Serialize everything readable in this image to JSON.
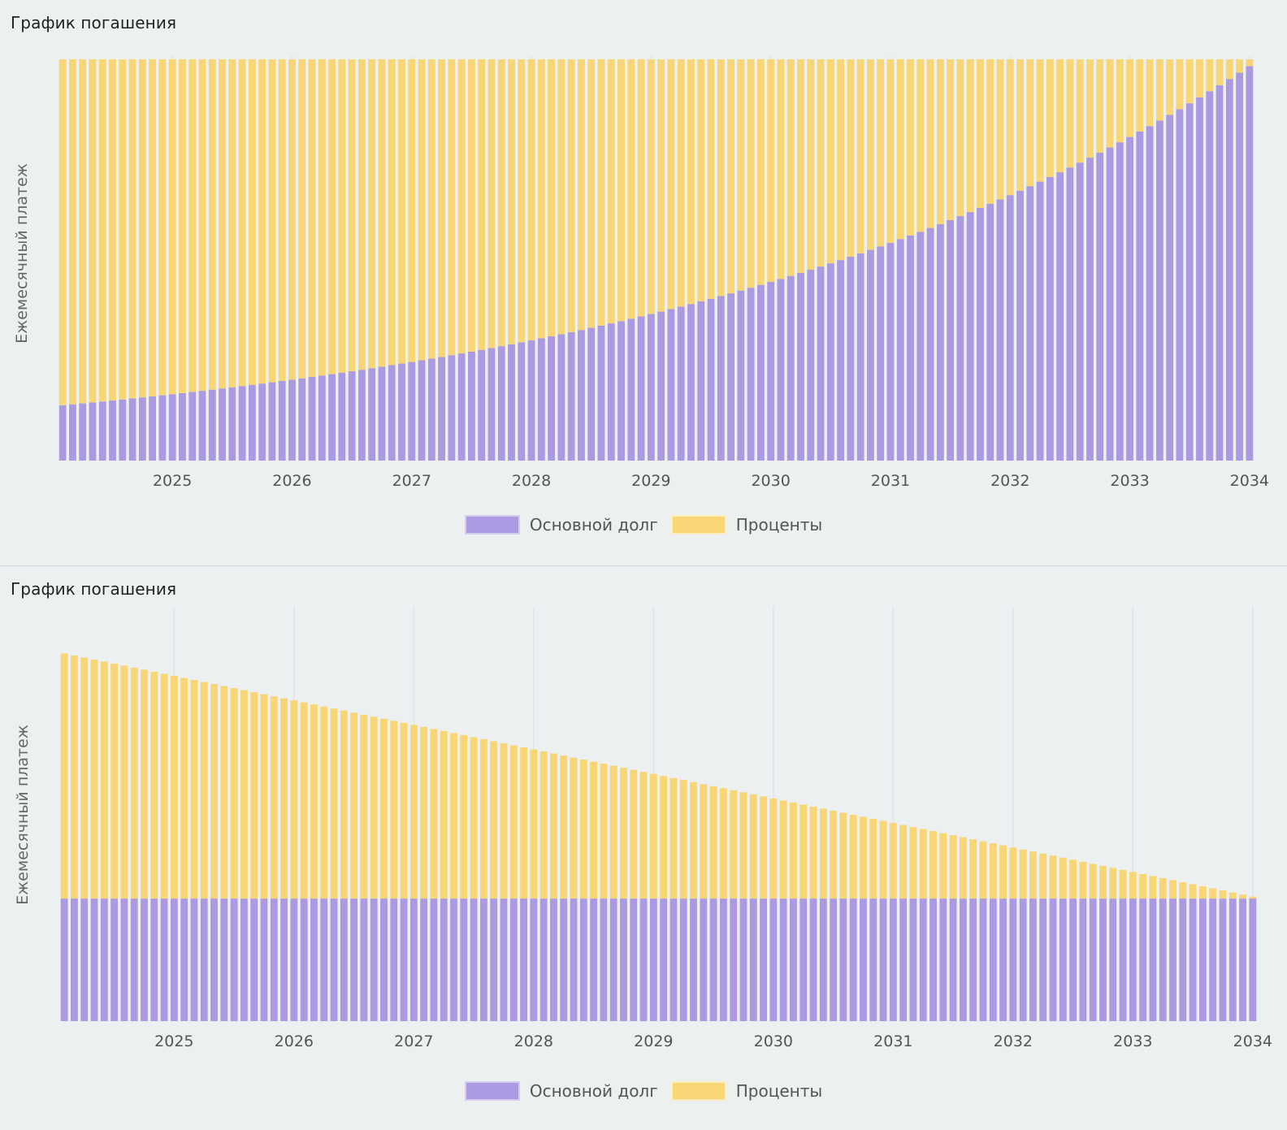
{
  "colors": {
    "principal": "#ab9ae1",
    "interest": "#f8d676",
    "grid": "#dfe3e6"
  },
  "panels": [
    {
      "title": "График погашения",
      "ylabel": "Ежемесячный платеж",
      "legend": [
        "Основной долг",
        "Проценты"
      ]
    },
    {
      "title": "График погашения",
      "ylabel": "Ежемесячный платеж",
      "legend": [
        "Основной долг",
        "Проценты"
      ]
    }
  ],
  "chart_data": [
    {
      "type": "bar",
      "stacked": true,
      "title": "График погашения",
      "xlabel": "",
      "ylabel": "Ежемесячный платеж",
      "x_range": [
        "2024-02",
        "2034-01"
      ],
      "xticks": [
        "2025",
        "2026",
        "2027",
        "2028",
        "2029",
        "2030",
        "2031",
        "2032",
        "2033",
        "2034"
      ],
      "n_payments": 120,
      "y_tick_labels_shown": false,
      "grid": true,
      "legend_position": "bottom",
      "payment_scheme": "annuity",
      "series": [
        {
          "name": "Основной долг",
          "color": "#ab9ae1",
          "share_first": 0.138,
          "share_last": 0.983
        },
        {
          "name": "Проценты",
          "color": "#f8d676",
          "share_first": 0.862,
          "share_last": 0.017
        }
      ]
    },
    {
      "type": "bar",
      "stacked": true,
      "title": "График погашения",
      "xlabel": "",
      "ylabel": "Ежемесячный платеж",
      "x_range": [
        "2024-02",
        "2034-01"
      ],
      "xticks": [
        "2025",
        "2026",
        "2027",
        "2028",
        "2029",
        "2030",
        "2031",
        "2032",
        "2033",
        "2034"
      ],
      "n_payments": 120,
      "y_tick_labels_shown": false,
      "grid": true,
      "legend_position": "bottom",
      "payment_scheme": "differentiated",
      "series": [
        {
          "name": "Основной долг",
          "color": "#ab9ae1",
          "relative_value": 1.0
        },
        {
          "name": "Проценты",
          "color": "#f8d676",
          "relative_first": 2.0,
          "relative_last": 0.017
        }
      ]
    }
  ]
}
